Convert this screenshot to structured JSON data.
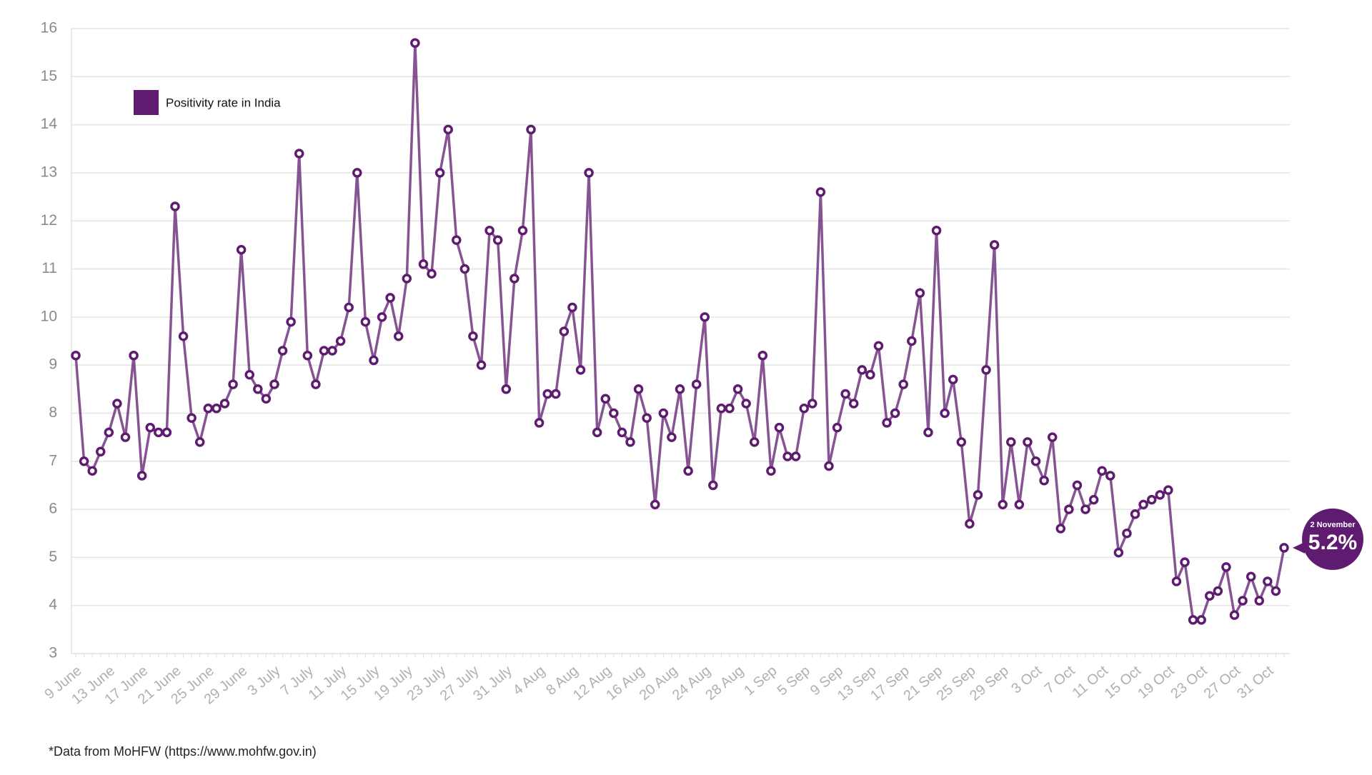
{
  "chart_data": {
    "type": "line",
    "categories": [
      "9 June",
      null,
      null,
      null,
      "13 June",
      null,
      null,
      null,
      "17 June",
      null,
      null,
      null,
      "21 June",
      null,
      null,
      null,
      "25 June",
      null,
      null,
      null,
      "29 June",
      null,
      null,
      null,
      "3 July",
      null,
      null,
      null,
      "7 July",
      null,
      null,
      null,
      "11 July",
      null,
      null,
      null,
      "15 July",
      null,
      null,
      null,
      "19 July",
      null,
      null,
      null,
      "23 July",
      null,
      null,
      null,
      "27 July",
      null,
      null,
      null,
      "31 July",
      null,
      null,
      null,
      "4 Aug",
      null,
      null,
      null,
      "8 Aug",
      null,
      null,
      null,
      "12 Aug",
      null,
      null,
      null,
      "16 Aug",
      null,
      null,
      null,
      "20 Aug",
      null,
      null,
      null,
      "24 Aug",
      null,
      null,
      null,
      "28 Aug",
      null,
      null,
      null,
      "1 Sep",
      null,
      null,
      null,
      "5 Sep",
      null,
      null,
      null,
      "9 Sep",
      null,
      null,
      null,
      "13 Sep",
      null,
      null,
      null,
      "17 Sep",
      null,
      null,
      null,
      "21 Sep",
      null,
      null,
      null,
      "25 Sep",
      null,
      null,
      null,
      "29 Sep",
      null,
      null,
      null,
      "3 Oct",
      null,
      null,
      null,
      "7 Oct",
      null,
      null,
      null,
      "11 Oct",
      null,
      null,
      null,
      "15 Oct",
      null,
      null,
      null,
      "19 Oct",
      null,
      null,
      null,
      "23 Oct",
      null,
      null,
      null,
      "27 Oct",
      null,
      null,
      null,
      "31 Oct",
      null,
      null
    ],
    "series": [
      {
        "name": "Positivity rate in India",
        "color": "#5e1b6f",
        "values": [
          9.2,
          7.0,
          6.8,
          7.2,
          7.6,
          8.2,
          7.5,
          9.2,
          6.7,
          7.7,
          7.6,
          7.6,
          12.3,
          9.6,
          7.9,
          7.4,
          8.1,
          8.1,
          8.2,
          8.6,
          11.4,
          8.8,
          8.5,
          8.3,
          8.6,
          9.3,
          9.9,
          13.4,
          9.2,
          8.6,
          9.3,
          9.3,
          9.5,
          10.2,
          13.0,
          9.9,
          9.1,
          10.0,
          10.4,
          9.6,
          10.8,
          15.7,
          11.1,
          10.9,
          13.0,
          13.9,
          11.6,
          11.0,
          9.6,
          9.0,
          11.8,
          11.6,
          8.5,
          10.8,
          11.8,
          13.9,
          7.8,
          8.4,
          8.4,
          9.7,
          10.2,
          8.9,
          13.0,
          7.6,
          8.3,
          8.0,
          7.6,
          7.4,
          8.5,
          7.9,
          6.1,
          8.0,
          7.5,
          8.5,
          6.8,
          8.6,
          10.0,
          6.5,
          8.1,
          8.1,
          8.5,
          8.2,
          7.4,
          9.2,
          6.8,
          7.7,
          7.1,
          7.1,
          8.1,
          8.2,
          12.6,
          6.9,
          7.7,
          8.4,
          8.2,
          8.9,
          8.8,
          9.4,
          7.8,
          8.0,
          8.6,
          9.5,
          10.5,
          7.6,
          11.8,
          8.0,
          8.7,
          7.4,
          5.7,
          6.3,
          8.9,
          11.5,
          6.1,
          7.4,
          6.1,
          7.4,
          7.0,
          6.6,
          7.5,
          5.6,
          6.0,
          6.5,
          6.0,
          6.2,
          6.8,
          6.7,
          5.1,
          5.5,
          5.9,
          6.1,
          6.2,
          6.3,
          6.4,
          4.5,
          4.9,
          3.7,
          3.7,
          4.2,
          4.3,
          4.8,
          3.8,
          4.1,
          4.6,
          4.1,
          4.5,
          4.3,
          5.2
        ]
      }
    ],
    "ylim": [
      3,
      16
    ],
    "yticks": [
      3,
      4,
      5,
      6,
      7,
      8,
      9,
      10,
      11,
      12,
      13,
      14,
      15,
      16
    ],
    "grid": true,
    "legend": "top-left",
    "annotation": {
      "title": "2 November",
      "text": "5.2%"
    },
    "footnote": "*Data from MoHFW (https://www.mohfw.gov.in)"
  }
}
